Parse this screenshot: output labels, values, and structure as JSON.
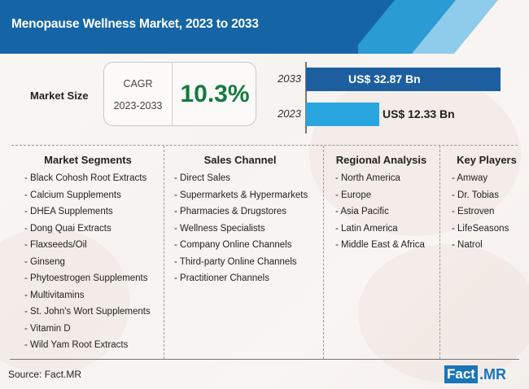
{
  "header": {
    "title": "Menopause Wellness Market, 2023 to 2033",
    "colors": {
      "primary": "#1565a6",
      "mid": "#2a9bd3",
      "light": "#8fcbea"
    }
  },
  "market_size": {
    "label": "Market Size",
    "cagr_label": "CAGR",
    "cagr_period": "2023-2033",
    "cagr_value": "10.3%",
    "cagr_color": "#157a3e"
  },
  "chart_data": {
    "type": "bar",
    "orientation": "horizontal",
    "title": "Market Size",
    "categories": [
      "2033",
      "2023"
    ],
    "values": [
      32.87,
      12.33
    ],
    "labels": [
      "US$ 32.87 Bn",
      "US$ 12.33 Bn"
    ],
    "unit": "US$ Bn",
    "colors": [
      "#1d5f9e",
      "#29a6e0"
    ],
    "xlim": [
      0,
      32.87
    ]
  },
  "sections": [
    {
      "title": "Market Segments",
      "items": [
        "- Black Cohosh Root Extracts",
        "- Calcium Supplements",
        "- DHEA Supplements",
        "- Dong Quai Extracts",
        "- Flaxseeds/Oil",
        "- Ginseng",
        "- Phytoestrogen Supplements",
        "- Multivitamins",
        "- St. John's Wort Supplements",
        "- Vitamin D",
        "- Wild Yam Root Extracts"
      ]
    },
    {
      "title": "Sales Channel",
      "items": [
        "- Direct Sales",
        "- Supermarkets & Hypermarkets",
        "- Pharmacies & Drugstores",
        "- Wellness Specialists",
        "- Company Online Channels",
        "- Third-party Online Channels",
        "- Practitioner Channels"
      ]
    },
    {
      "title": "Regional Analysis",
      "items": [
        "- North America",
        "- Europe",
        "- Asia Pacific",
        "- Latin America",
        "- Middle East & Africa"
      ]
    },
    {
      "title": "Key Players",
      "items": [
        "- Amway",
        "- Dr. Tobias",
        "- Estroven",
        "- LifeSeasons",
        "- Natrol"
      ]
    }
  ],
  "footer": {
    "source": "Source: Fact.MR",
    "logo_part1": "Fact",
    "logo_part2": ".MR"
  }
}
